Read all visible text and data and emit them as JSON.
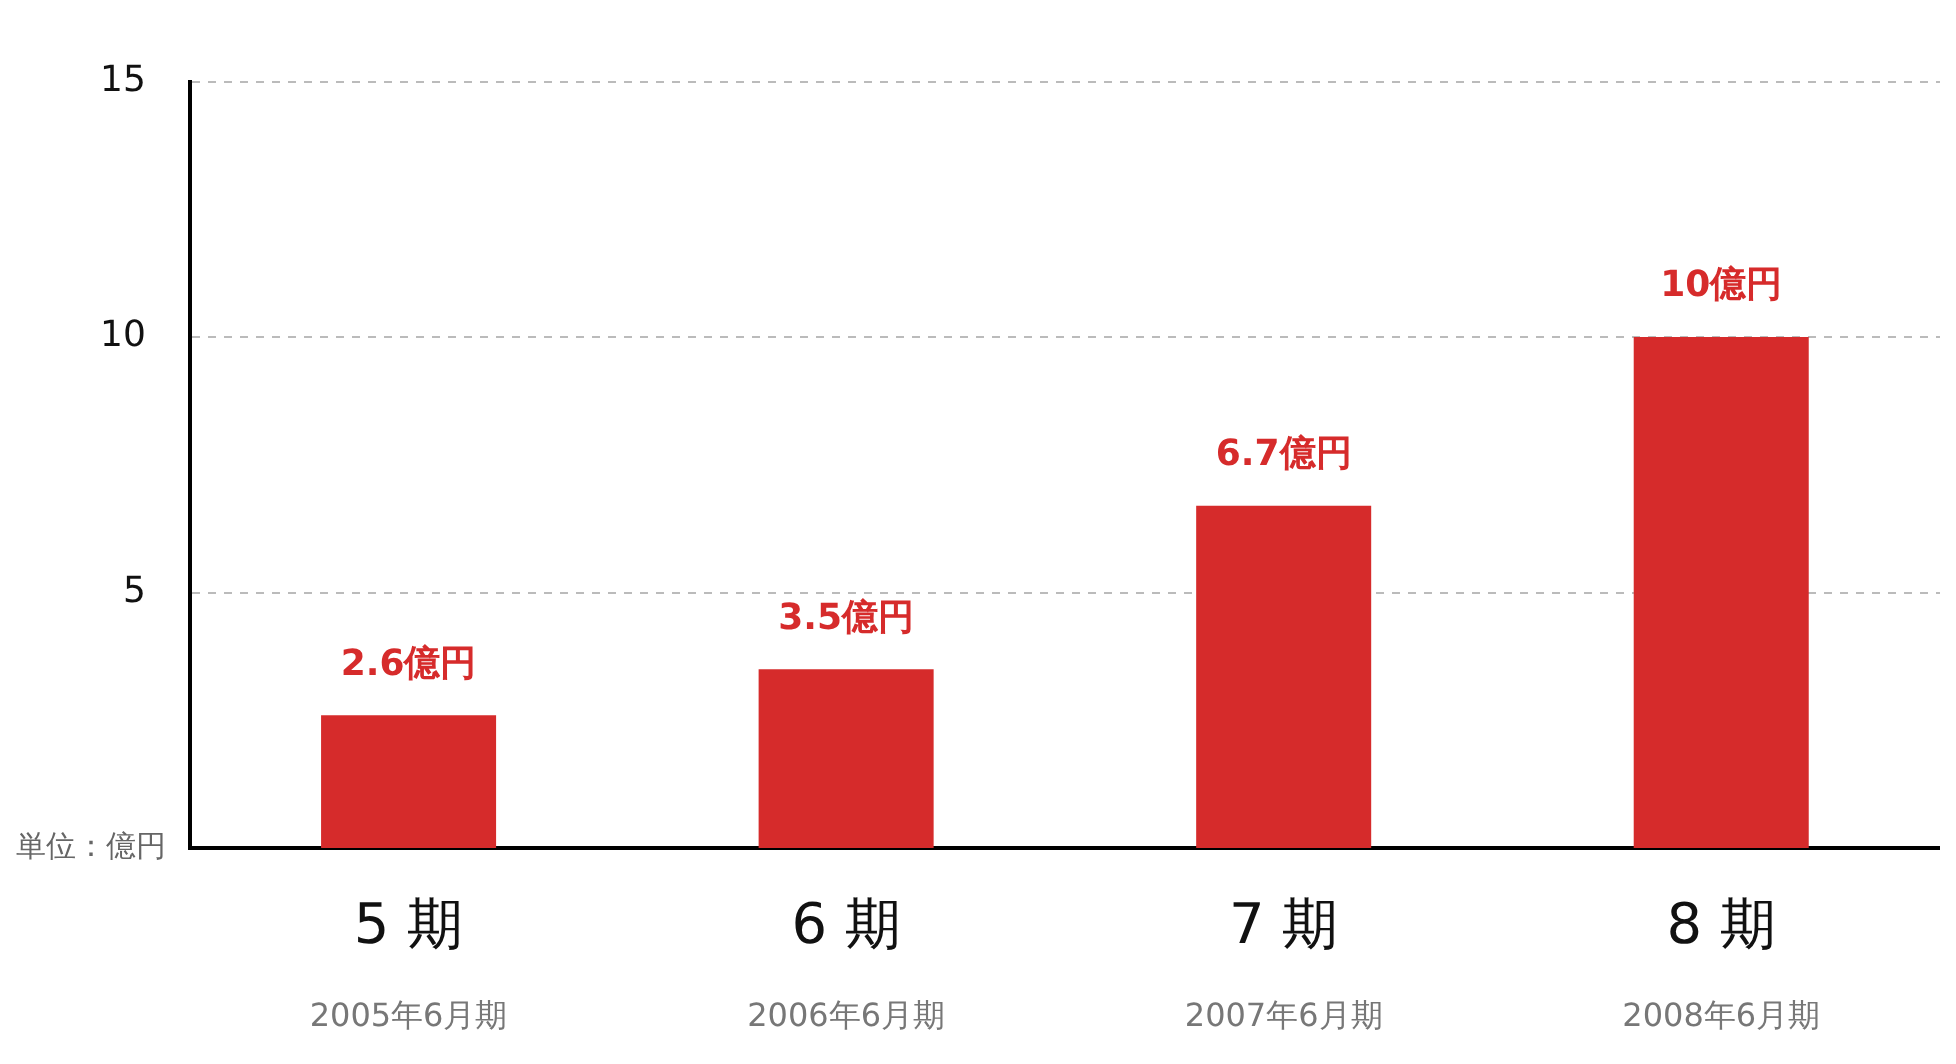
{
  "chart_data": {
    "type": "bar",
    "categories": [
      "5 期\n2005年6月期",
      "6 期\n2006年6月期",
      "7 期\n2007年6月期",
      "8 期\n2008年6月期"
    ],
    "values": [
      2.6,
      3.5,
      6.7,
      10
    ],
    "color": "#d62b2b",
    "value_labels": [
      "2.6億円",
      "3.5億円",
      "6.7億円",
      "10億円"
    ],
    "ylim": [
      0,
      15
    ],
    "yticks": [
      5,
      10,
      15
    ],
    "grid": "y",
    "legend": false,
    "annotations": [
      "単位：億円"
    ]
  }
}
